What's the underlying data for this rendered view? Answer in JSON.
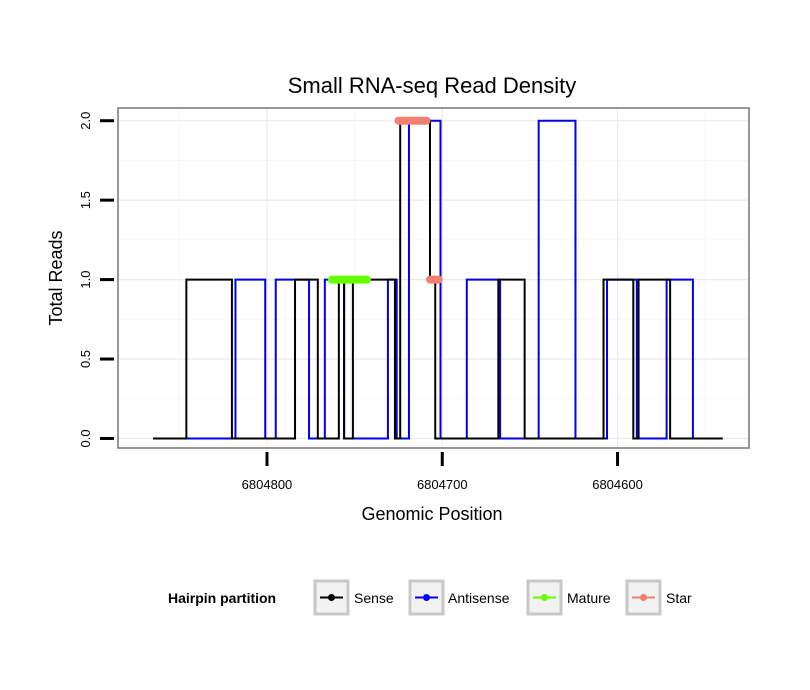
{
  "chart_data": {
    "type": "line",
    "title": "Small RNA-seq Read Density",
    "xlabel": "Genomic Position",
    "ylabel": "Total Reads",
    "x_reversed": true,
    "xlim": [
      6804885,
      6804525
    ],
    "ylim": [
      -0.06,
      2.08
    ],
    "x_ticks": [
      {
        "value": 6804800,
        "label": "6804800"
      },
      {
        "value": 6804700,
        "label": "6804700"
      },
      {
        "value": 6804600,
        "label": "6804600"
      }
    ],
    "y_ticks": [
      {
        "value": 0,
        "label": "0.0"
      },
      {
        "value": 0.5,
        "label": "0.5"
      },
      {
        "value": 1,
        "label": "1.0"
      },
      {
        "value": 1.5,
        "label": "1.5"
      },
      {
        "value": 2,
        "label": "2.0"
      }
    ],
    "legend": {
      "title": "Hairpin partition",
      "position": "bottom",
      "entries": [
        {
          "key": "sense",
          "label": "Sense",
          "color": "#000000"
        },
        {
          "key": "antisense",
          "label": "Antisense",
          "color": "#0000ee"
        },
        {
          "key": "mature",
          "label": "Mature",
          "color": "#66ff00"
        },
        {
          "key": "star",
          "label": "Star",
          "color": "#f08070"
        }
      ]
    },
    "series": [
      {
        "name": "Antisense",
        "color": "#0000ee",
        "style": "line",
        "points": [
          [
            6804865,
            0
          ],
          [
            6804818,
            0
          ],
          [
            6804818,
            1
          ],
          [
            6804801,
            1
          ],
          [
            6804801,
            0
          ],
          [
            6804795,
            0
          ],
          [
            6804795,
            1
          ],
          [
            6804776,
            1
          ],
          [
            6804776,
            0
          ],
          [
            6804767,
            0
          ],
          [
            6804767,
            1
          ],
          [
            6804756,
            1
          ],
          [
            6804756,
            0
          ],
          [
            6804731,
            0
          ],
          [
            6804731,
            1
          ],
          [
            6804726,
            1
          ],
          [
            6804726,
            0
          ],
          [
            6804719,
            0
          ],
          [
            6804719,
            2
          ],
          [
            6804701,
            2
          ],
          [
            6804701,
            0
          ],
          [
            6804686,
            0
          ],
          [
            6804686,
            1
          ],
          [
            6804667,
            1
          ],
          [
            6804667,
            0
          ],
          [
            6804645,
            0
          ],
          [
            6804645,
            2
          ],
          [
            6804624,
            2
          ],
          [
            6804624,
            0
          ],
          [
            6804606,
            0
          ],
          [
            6804606,
            1
          ],
          [
            6804589,
            1
          ],
          [
            6804589,
            0
          ],
          [
            6804572,
            0
          ],
          [
            6804572,
            1
          ],
          [
            6804557,
            1
          ],
          [
            6804557,
            0
          ],
          [
            6804540,
            0
          ]
        ]
      },
      {
        "name": "Sense",
        "color": "#000000",
        "style": "line",
        "points": [
          [
            6804865,
            0
          ],
          [
            6804846,
            0
          ],
          [
            6804846,
            1
          ],
          [
            6804820,
            1
          ],
          [
            6804820,
            0
          ],
          [
            6804784,
            0
          ],
          [
            6804784,
            1
          ],
          [
            6804774,
            1
          ],
          [
            6804774,
            1
          ],
          [
            6804771,
            1
          ],
          [
            6804771,
            0
          ],
          [
            6804759,
            0
          ],
          [
            6804759,
            1
          ],
          [
            6804756,
            1
          ],
          [
            6804756,
            0
          ],
          [
            6804751,
            0
          ],
          [
            6804751,
            1
          ],
          [
            6804729,
            1
          ],
          [
            6804729,
            1
          ],
          [
            6804727,
            1
          ],
          [
            6804727,
            0
          ],
          [
            6804724,
            0
          ],
          [
            6804724,
            2
          ],
          [
            6804707,
            2
          ],
          [
            6804707,
            1
          ],
          [
            6804704,
            1
          ],
          [
            6804704,
            0
          ],
          [
            6804668,
            0
          ],
          [
            6804668,
            1
          ],
          [
            6804654,
            1
          ],
          [
            6804654,
            1
          ],
          [
            6804653,
            1
          ],
          [
            6804653,
            0
          ],
          [
            6804608,
            0
          ],
          [
            6804608,
            1
          ],
          [
            6804593,
            1
          ],
          [
            6804593,
            1
          ],
          [
            6804591,
            1
          ],
          [
            6804591,
            0
          ],
          [
            6804588,
            0
          ],
          [
            6804588,
            1
          ],
          [
            6804570,
            1
          ],
          [
            6804570,
            0
          ],
          [
            6804540,
            0
          ]
        ]
      },
      {
        "name": "Mature",
        "color": "#66ff00",
        "style": "segment",
        "points": [
          [
            6804763,
            1
          ],
          [
            6804743,
            1
          ]
        ]
      },
      {
        "name": "Star",
        "color": "#f08070",
        "style": "segment",
        "points": [
          [
            6804725,
            2
          ],
          [
            6804709,
            2
          ]
        ]
      },
      {
        "name": "Star",
        "color": "#f08070",
        "style": "segment",
        "points": [
          [
            6804707,
            1
          ],
          [
            6804702,
            1
          ]
        ]
      }
    ]
  }
}
